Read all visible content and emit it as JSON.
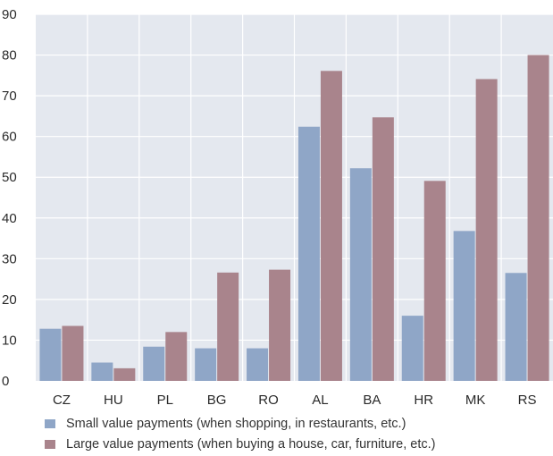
{
  "chart_data": {
    "type": "bar",
    "categories": [
      "CZ",
      "HU",
      "PL",
      "BG",
      "RO",
      "AL",
      "BA",
      "HR",
      "MK",
      "RS"
    ],
    "series": [
      {
        "name": "Small value payments (when shopping, in restaurants, etc.)",
        "values": [
          12.8,
          4.5,
          8.4,
          8.0,
          8.0,
          62.4,
          52.2,
          16.0,
          36.8,
          26.5
        ]
      },
      {
        "name": "Large value payments (when buying a house, car, furniture, etc.)",
        "values": [
          13.5,
          3.1,
          12.0,
          26.6,
          27.3,
          76.1,
          64.7,
          49.1,
          74.1,
          80.0
        ]
      }
    ],
    "colors": [
      "#8fa6c7",
      "#a9848c"
    ],
    "plot_background": "#e4e8ef",
    "ylim": [
      0,
      90
    ],
    "yticks": [
      0,
      10,
      20,
      30,
      40,
      50,
      60,
      70,
      80,
      90
    ],
    "grid": true,
    "legend_position": "bottom-left",
    "title": "",
    "xlabel": "",
    "ylabel": ""
  }
}
